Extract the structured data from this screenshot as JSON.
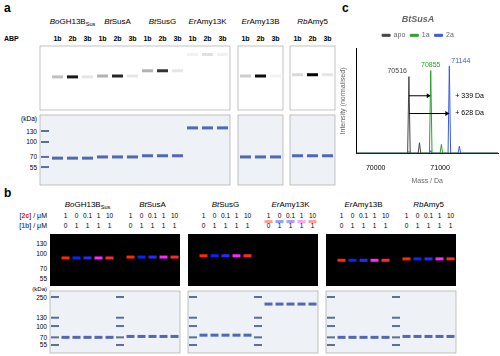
{
  "figure": {
    "panels": {
      "a": {
        "label": "a",
        "row_label": "ABP",
        "lanes": [
          "1b",
          "2b",
          "3b"
        ],
        "groups": [
          {
            "italic": "Bo",
            "text": "GH13B",
            "sub": "Sus"
          },
          {
            "italic": "Bt",
            "text": "SusA"
          },
          {
            "italic": "Bt",
            "text": "SusG"
          },
          {
            "italic": "Er",
            "text": "Amy13K"
          },
          {
            "italic": "Er",
            "text": "Amy13B"
          },
          {
            "italic": "Rb",
            "text": "Amy5"
          }
        ],
        "kda_label": "(kDa)",
        "kda": [
          130,
          100,
          70,
          55
        ]
      },
      "b": {
        "label": "b",
        "groups": [
          {
            "italic": "Bo",
            "text": "GH13B",
            "sub": "Sus"
          },
          {
            "italic": "Bt",
            "text": "SusA"
          },
          {
            "italic": "Bt",
            "text": "SusG"
          },
          {
            "italic": "Er",
            "text": "Amy13K"
          },
          {
            "italic": "Er",
            "text": "Amy13B"
          },
          {
            "italic": "Rb",
            "text": "Amy5"
          }
        ],
        "row1_label": [
          "[",
          "2c",
          "] / μM"
        ],
        "row1": [
          1,
          0,
          0.1,
          1,
          10
        ],
        "row2_label": [
          "[",
          "1b",
          "] / μM"
        ],
        "row2": [
          0,
          1,
          1,
          1,
          1
        ],
        "kda_top": [
          130,
          100,
          70,
          55
        ],
        "kda_label": "(kDa)",
        "kda_bottom": [
          250,
          130,
          100,
          70,
          55
        ]
      },
      "c": {
        "label": "c"
      }
    }
  },
  "chart_data": {
    "type": "line",
    "title": "BtSusA",
    "x_label": "Mass / Da",
    "y_label": "Intensity (normalised)",
    "x": [
      69700,
      70300,
      70496,
      70516,
      70536,
      70660,
      70680,
      70700,
      70835,
      70855,
      70875,
      71000,
      71020,
      71040,
      71124,
      71144,
      71164,
      71280,
      71300,
      71320,
      71900
    ],
    "series": [
      {
        "name": "apo",
        "color": "#444444",
        "values": [
          0,
          0,
          0,
          0.88,
          0,
          0,
          0.12,
          0,
          0,
          0,
          0,
          0,
          0,
          0,
          0,
          0,
          0,
          0,
          0,
          0,
          0
        ]
      },
      {
        "name": "1a",
        "color": "#2ca02c",
        "values": [
          0,
          0,
          0,
          0.02,
          0,
          0,
          0,
          0,
          0,
          0.95,
          0,
          0,
          0.1,
          0,
          0,
          0,
          0,
          0,
          0,
          0,
          0
        ]
      },
      {
        "name": "2a",
        "color": "#3b5bdb",
        "values": [
          0,
          0,
          0,
          0,
          0,
          0,
          0,
          0,
          0,
          0.03,
          0,
          0,
          0,
          0,
          0,
          1.0,
          0,
          0,
          0.08,
          0,
          0
        ]
      }
    ],
    "xlim": [
      69700,
      71900
    ],
    "xticks": [
      70000,
      71000
    ],
    "ylim": [
      0,
      1.2
    ],
    "tick_labels": "x",
    "grid": false,
    "legend": "top",
    "peak_labels": [
      70516,
      70855,
      71144
    ],
    "arrows": [
      {
        "from": 70516,
        "to": 70855,
        "text": "+ 339 Da"
      },
      {
        "from": 70516,
        "to": 71144,
        "text": "+ 628 Da"
      }
    ]
  }
}
